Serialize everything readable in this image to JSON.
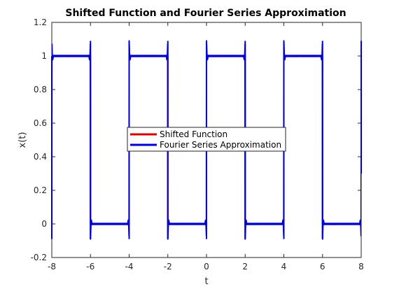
{
  "chart_data": {
    "type": "line",
    "title": "Shifted Function and Fourier Series Approximation",
    "xlabel": "t",
    "ylabel": "x(t)",
    "xlim": [
      -8,
      8
    ],
    "ylim": [
      -0.2,
      1.2
    ],
    "xticks": [
      "-8",
      "-6",
      "-4",
      "-2",
      "0",
      "2",
      "4",
      "6",
      "8"
    ],
    "yticks": [
      "-0.2",
      "0",
      "0.2",
      "0.4",
      "0.6",
      "0.8",
      "1",
      "1.2"
    ],
    "grid": false,
    "legend": "center",
    "series": [
      {
        "name": "Shifted Function",
        "color": "#d40000",
        "x": [
          -8,
          -6,
          -6,
          -4,
          -4,
          -2,
          -2,
          0,
          0,
          2,
          2,
          4,
          4,
          6,
          6,
          8,
          8
        ],
        "y": [
          1,
          1,
          0,
          0,
          1,
          1,
          0,
          0,
          1,
          1,
          0,
          0,
          1,
          1,
          0,
          0,
          1
        ]
      },
      {
        "name": "Fourier Series Approximation",
        "color": "#0000d4",
        "x": [
          -8,
          -6,
          -6,
          -4,
          -4,
          -2,
          -2,
          0,
          0,
          2,
          2,
          4,
          4,
          6,
          6,
          8,
          8
        ],
        "y": [
          1,
          1,
          0,
          0,
          1,
          1,
          0,
          0,
          1,
          1,
          0,
          0,
          1,
          1,
          0,
          0,
          0.5
        ],
        "overshoot": 0.09
      }
    ]
  }
}
